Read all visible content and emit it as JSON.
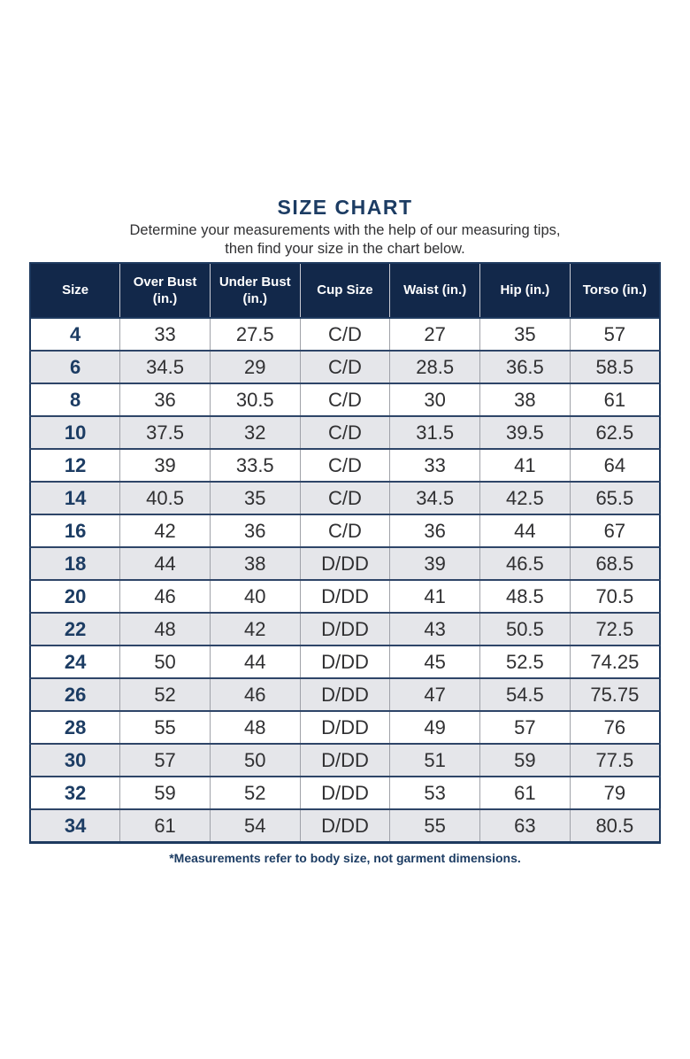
{
  "header": {
    "title": "SIZE CHART",
    "subtitle_line1": "Determine your measurements with the help of our measuring tips,",
    "subtitle_line2": "then find your size in the chart below."
  },
  "footnote": "*Measurements refer to body size, not garment dimensions.",
  "colors": {
    "header_bg_navy": "#12284a",
    "navy_text": "#1c3c63",
    "row_alt_bg": "#e5e6ea",
    "body_text": "#303032",
    "grid_vertical_gray": "#9fa1a8",
    "grid_horizontal_navy": "#2e4568",
    "outer_border_navy": "#1e3a5f"
  },
  "chart_data": {
    "type": "table",
    "title": "SIZE CHART",
    "columns": [
      "Size",
      "Over Bust (in.)",
      "Under Bust (in.)",
      "Cup Size",
      "Waist (in.)",
      "Hip (in.)",
      "Torso (in.)"
    ],
    "rows": [
      [
        "4",
        "33",
        "27.5",
        "C/D",
        "27",
        "35",
        "57"
      ],
      [
        "6",
        "34.5",
        "29",
        "C/D",
        "28.5",
        "36.5",
        "58.5"
      ],
      [
        "8",
        "36",
        "30.5",
        "C/D",
        "30",
        "38",
        "61"
      ],
      [
        "10",
        "37.5",
        "32",
        "C/D",
        "31.5",
        "39.5",
        "62.5"
      ],
      [
        "12",
        "39",
        "33.5",
        "C/D",
        "33",
        "41",
        "64"
      ],
      [
        "14",
        "40.5",
        "35",
        "C/D",
        "34.5",
        "42.5",
        "65.5"
      ],
      [
        "16",
        "42",
        "36",
        "C/D",
        "36",
        "44",
        "67"
      ],
      [
        "18",
        "44",
        "38",
        "D/DD",
        "39",
        "46.5",
        "68.5"
      ],
      [
        "20",
        "46",
        "40",
        "D/DD",
        "41",
        "48.5",
        "70.5"
      ],
      [
        "22",
        "48",
        "42",
        "D/DD",
        "43",
        "50.5",
        "72.5"
      ],
      [
        "24",
        "50",
        "44",
        "D/DD",
        "45",
        "52.5",
        "74.25"
      ],
      [
        "26",
        "52",
        "46",
        "D/DD",
        "47",
        "54.5",
        "75.75"
      ],
      [
        "28",
        "55",
        "48",
        "D/DD",
        "49",
        "57",
        "76"
      ],
      [
        "30",
        "57",
        "50",
        "D/DD",
        "51",
        "59",
        "77.5"
      ],
      [
        "32",
        "59",
        "52",
        "D/DD",
        "53",
        "61",
        "79"
      ],
      [
        "34",
        "61",
        "54",
        "D/DD",
        "55",
        "63",
        "80.5"
      ]
    ]
  }
}
